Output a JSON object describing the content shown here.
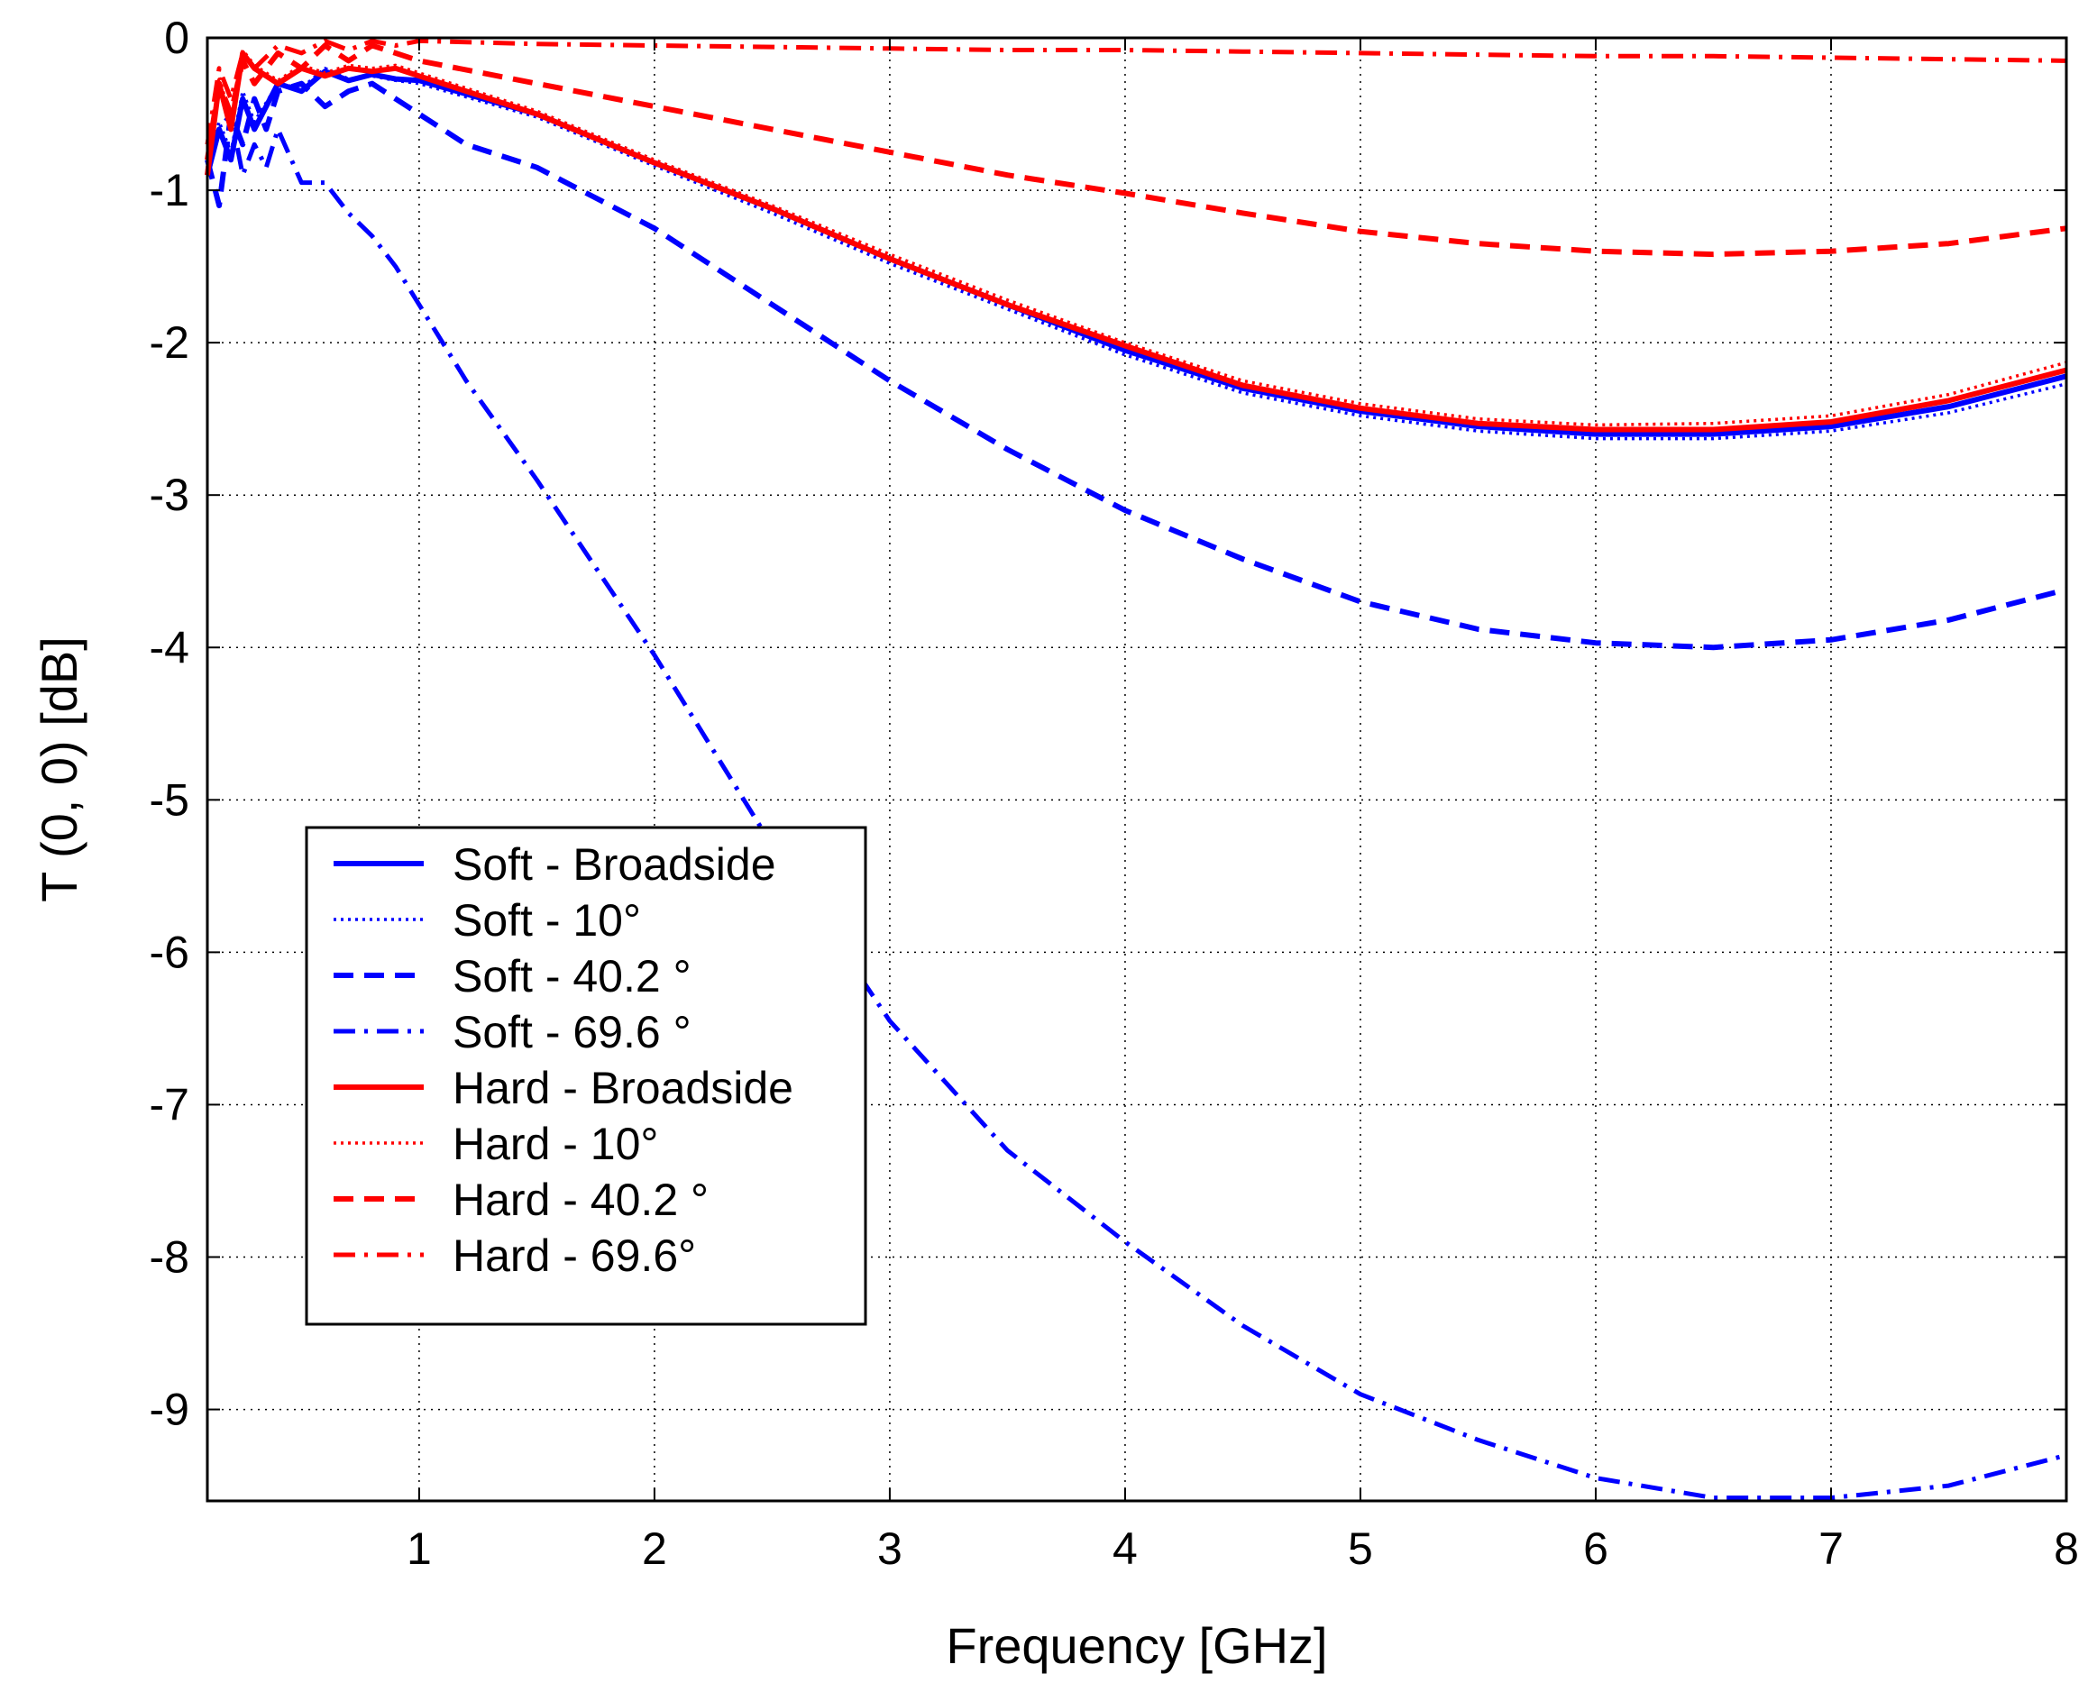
{
  "chart_data": {
    "type": "line",
    "title": "",
    "xlabel": "Frequency [GHz]",
    "ylabel": "T (0, 0) [dB]",
    "xlim": [
      0.1,
      8
    ],
    "ylim": [
      -9.6,
      0
    ],
    "xticks": [
      1,
      2,
      3,
      4,
      5,
      6,
      7,
      8
    ],
    "yticks": [
      0,
      -1,
      -2,
      -3,
      -4,
      -5,
      -6,
      -7,
      -8,
      -9
    ],
    "grid": true,
    "legend_position": "lower-left",
    "series": [
      {
        "name": "Soft - Broadside",
        "color": "#0000ff",
        "dash": "solid",
        "x": [
          0.1,
          0.15,
          0.2,
          0.25,
          0.3,
          0.4,
          0.5,
          0.6,
          0.7,
          0.8,
          0.9,
          1.0,
          1.5,
          2.0,
          2.5,
          3.0,
          3.5,
          4.0,
          4.5,
          5.0,
          5.5,
          6.0,
          6.5,
          7.0,
          7.5,
          8.0
        ],
        "y": [
          -0.9,
          -0.6,
          -0.8,
          -0.4,
          -0.6,
          -0.3,
          -0.35,
          -0.22,
          -0.28,
          -0.24,
          -0.27,
          -0.28,
          -0.5,
          -0.82,
          -1.12,
          -1.45,
          -1.75,
          -2.05,
          -2.3,
          -2.45,
          -2.55,
          -2.6,
          -2.6,
          -2.55,
          -2.42,
          -2.22
        ]
      },
      {
        "name": "Soft - 10°",
        "color": "#0000ff",
        "dash": "dotted",
        "x": [
          0.1,
          0.15,
          0.2,
          0.25,
          0.3,
          0.4,
          0.5,
          0.6,
          0.7,
          0.8,
          0.9,
          1.0,
          1.5,
          2.0,
          2.5,
          3.0,
          3.5,
          4.0,
          4.5,
          5.0,
          5.5,
          6.0,
          6.5,
          7.0,
          7.5,
          8.0
        ],
        "y": [
          -0.85,
          -0.55,
          -0.75,
          -0.35,
          -0.55,
          -0.3,
          -0.33,
          -0.2,
          -0.27,
          -0.25,
          -0.28,
          -0.3,
          -0.52,
          -0.84,
          -1.15,
          -1.48,
          -1.78,
          -2.08,
          -2.33,
          -2.48,
          -2.58,
          -2.63,
          -2.63,
          -2.58,
          -2.46,
          -2.27
        ]
      },
      {
        "name": "Soft - 40.2 °",
        "color": "#0000ff",
        "dash": "dashed",
        "x": [
          0.1,
          0.15,
          0.2,
          0.25,
          0.3,
          0.35,
          0.4,
          0.5,
          0.6,
          0.7,
          0.8,
          0.9,
          1.0,
          1.2,
          1.5,
          2.0,
          2.5,
          3.0,
          3.5,
          4.0,
          4.5,
          5.0,
          5.5,
          6.0,
          6.5,
          7.0,
          7.5,
          8.0
        ],
        "y": [
          -0.8,
          -1.1,
          -0.5,
          -0.7,
          -0.4,
          -0.6,
          -0.35,
          -0.3,
          -0.45,
          -0.35,
          -0.3,
          -0.4,
          -0.5,
          -0.7,
          -0.85,
          -1.25,
          -1.75,
          -2.25,
          -2.7,
          -3.1,
          -3.42,
          -3.7,
          -3.88,
          -3.97,
          -4.0,
          -3.95,
          -3.82,
          -3.62
        ]
      },
      {
        "name": "Soft - 69.6 °",
        "color": "#0000ff",
        "dash": "dashdot",
        "x": [
          0.1,
          0.15,
          0.2,
          0.25,
          0.3,
          0.35,
          0.4,
          0.5,
          0.6,
          0.7,
          0.8,
          0.9,
          1.0,
          1.2,
          1.5,
          2.0,
          2.5,
          3.0,
          3.5,
          4.0,
          4.5,
          5.0,
          5.5,
          6.0,
          6.5,
          7.0,
          7.5,
          8.0
        ],
        "y": [
          -0.8,
          -0.6,
          -0.5,
          -0.9,
          -0.7,
          -0.85,
          -0.6,
          -0.95,
          -0.95,
          -1.15,
          -1.3,
          -1.5,
          -1.75,
          -2.25,
          -2.9,
          -4.05,
          -5.3,
          -6.45,
          -7.3,
          -7.9,
          -8.45,
          -8.9,
          -9.2,
          -9.45,
          -9.58,
          -9.58,
          -9.5,
          -9.3
        ]
      },
      {
        "name": "Hard - Broadside",
        "color": "#ff0000",
        "dash": "solid",
        "x": [
          0.1,
          0.15,
          0.2,
          0.25,
          0.3,
          0.4,
          0.5,
          0.6,
          0.7,
          0.8,
          0.9,
          1.0,
          1.5,
          2.0,
          2.5,
          3.0,
          3.5,
          4.0,
          4.5,
          5.0,
          5.5,
          6.0,
          6.5,
          7.0,
          7.5,
          8.0
        ],
        "y": [
          -0.9,
          -0.3,
          -0.6,
          -0.1,
          -0.2,
          -0.3,
          -0.2,
          -0.25,
          -0.2,
          -0.22,
          -0.2,
          -0.25,
          -0.5,
          -0.82,
          -1.12,
          -1.45,
          -1.75,
          -2.02,
          -2.28,
          -2.43,
          -2.53,
          -2.57,
          -2.57,
          -2.52,
          -2.38,
          -2.18
        ]
      },
      {
        "name": "Hard - 10°",
        "color": "#ff0000",
        "dash": "dotted",
        "x": [
          0.1,
          0.15,
          0.2,
          0.25,
          0.3,
          0.4,
          0.5,
          0.6,
          0.7,
          0.8,
          0.9,
          1.0,
          1.5,
          2.0,
          2.5,
          3.0,
          3.5,
          4.0,
          4.5,
          5.0,
          5.5,
          6.0,
          6.5,
          7.0,
          7.5,
          8.0
        ],
        "y": [
          -0.85,
          -0.25,
          -0.55,
          -0.08,
          -0.18,
          -0.28,
          -0.18,
          -0.23,
          -0.18,
          -0.2,
          -0.18,
          -0.23,
          -0.48,
          -0.8,
          -1.1,
          -1.42,
          -1.72,
          -2.0,
          -2.25,
          -2.4,
          -2.5,
          -2.54,
          -2.53,
          -2.48,
          -2.34,
          -2.13
        ]
      },
      {
        "name": "Hard - 40.2 °",
        "color": "#ff0000",
        "dash": "dashed",
        "x": [
          0.1,
          0.15,
          0.2,
          0.25,
          0.3,
          0.4,
          0.5,
          0.6,
          0.7,
          0.8,
          0.9,
          1.0,
          1.5,
          2.0,
          2.5,
          3.0,
          3.5,
          4.0,
          4.5,
          5.0,
          5.5,
          6.0,
          6.5,
          7.0,
          7.5,
          8.0
        ],
        "y": [
          -0.8,
          -0.3,
          -0.5,
          -0.15,
          -0.3,
          -0.1,
          -0.2,
          -0.05,
          -0.15,
          -0.05,
          -0.1,
          -0.15,
          -0.3,
          -0.45,
          -0.6,
          -0.75,
          -0.9,
          -1.02,
          -1.15,
          -1.27,
          -1.35,
          -1.4,
          -1.42,
          -1.4,
          -1.35,
          -1.25
        ]
      },
      {
        "name": "Hard - 69.6°",
        "color": "#ff0000",
        "dash": "dashdot",
        "x": [
          0.1,
          0.15,
          0.2,
          0.25,
          0.3,
          0.4,
          0.5,
          0.6,
          0.7,
          0.8,
          0.9,
          1.0,
          1.5,
          2.0,
          2.5,
          3.0,
          3.5,
          4.0,
          4.5,
          5.0,
          5.5,
          6.0,
          6.5,
          7.0,
          7.5,
          8.0
        ],
        "y": [
          -0.7,
          -0.2,
          -0.4,
          -0.1,
          -0.2,
          -0.05,
          -0.1,
          -0.02,
          -0.08,
          -0.02,
          -0.05,
          -0.02,
          -0.04,
          -0.05,
          -0.06,
          -0.07,
          -0.08,
          -0.08,
          -0.09,
          -0.1,
          -0.11,
          -0.12,
          -0.12,
          -0.13,
          -0.14,
          -0.15
        ]
      }
    ]
  }
}
